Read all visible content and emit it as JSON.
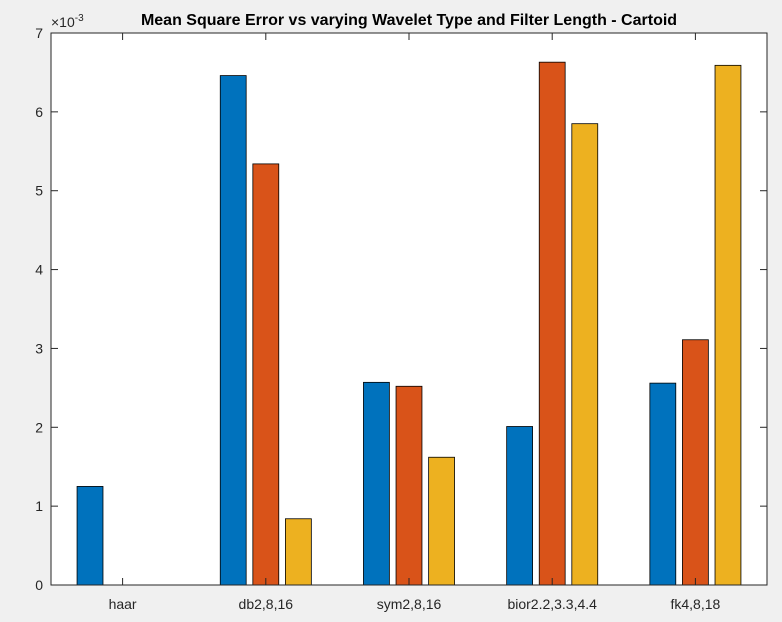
{
  "chart_data": {
    "type": "bar",
    "title": "Mean Square Error vs varying Wavelet Type and Filter Length - Cartoid",
    "xlabel": "",
    "ylabel": "",
    "exponent_label": {
      "base": "×10",
      "power": "-3"
    },
    "categories": [
      "haar",
      "db2,8,16",
      "sym2,8,16",
      "bior2.2,3.3,4.4",
      "fk4,8,18"
    ],
    "series": [
      {
        "color": "#0072BD",
        "values": [
          1.25,
          6.46,
          2.57,
          2.01,
          2.56
        ]
      },
      {
        "color": "#D95319",
        "values": [
          0,
          5.34,
          2.52,
          6.63,
          3.11
        ]
      },
      {
        "color": "#EDB120",
        "values": [
          0,
          0.84,
          1.62,
          5.85,
          6.59
        ]
      }
    ],
    "ylim": [
      0,
      7
    ],
    "yticks": [
      0,
      1,
      2,
      3,
      4,
      5,
      6,
      7
    ],
    "grid": false,
    "legend": false
  }
}
